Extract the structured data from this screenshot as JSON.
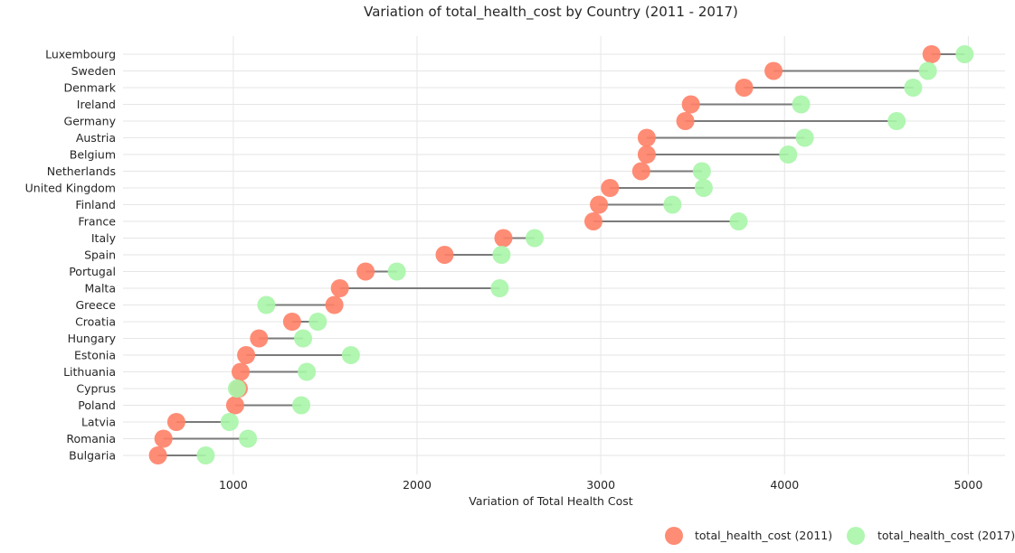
{
  "chart_data": {
    "type": "dumbbell",
    "title": "Variation of total_health_cost by Country (2011 - 2017)",
    "xlabel": "Variation of Total Health Cost",
    "ylabel": "",
    "xlim": [
      400,
      5200
    ],
    "xticks": [
      1000,
      2000,
      3000,
      4000,
      5000
    ],
    "grid": true,
    "legend_position": "bottom-right",
    "categories": [
      "Luxembourg",
      "Sweden",
      "Denmark",
      "Ireland",
      "Germany",
      "Austria",
      "Belgium",
      "Netherlands",
      "United Kingdom",
      "Finland",
      "France",
      "Italy",
      "Spain",
      "Portugal",
      "Malta",
      "Greece",
      "Croatia",
      "Hungary",
      "Estonia",
      "Lithuania",
      "Cyprus",
      "Poland",
      "Latvia",
      "Romania",
      "Bulgaria"
    ],
    "series": [
      {
        "name": "total_health_cost (2011)",
        "color": "#ff7f66",
        "values": [
          4800,
          3940,
          3780,
          3490,
          3460,
          3250,
          3250,
          3220,
          3050,
          2990,
          2960,
          2470,
          2150,
          1720,
          1580,
          1550,
          1320,
          1140,
          1070,
          1040,
          1030,
          1010,
          690,
          620,
          590
        ]
      },
      {
        "name": "total_health_cost (2017)",
        "color": "#a9f5a9",
        "values": [
          4980,
          4780,
          4700,
          4090,
          4610,
          4110,
          4020,
          3550,
          3560,
          3390,
          3750,
          2640,
          2460,
          1890,
          2450,
          1180,
          1460,
          1380,
          1640,
          1400,
          1020,
          1370,
          980,
          1080,
          850
        ]
      }
    ]
  }
}
